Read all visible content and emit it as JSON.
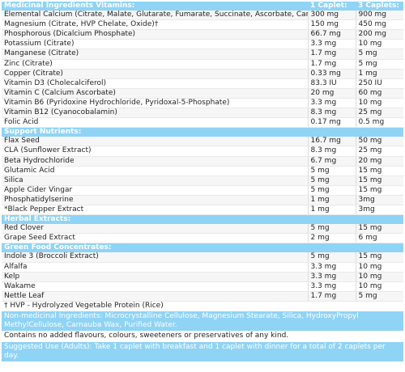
{
  "sections": [
    {
      "title": "Medicinal Ingredients Vitamins:",
      "col1": "1 Caplet:",
      "col2": "3 Caplets:",
      "rows": [
        [
          "Elemental Calcium (Citrate, Malate, Glutarate, Fumarate, Succinate, Ascorbate, Carbonate)",
          "300 mg",
          "900 mg"
        ],
        [
          "Magnesium (Citrate, HVP Chelate, Oxide)†",
          "150 mg",
          "450 mg"
        ],
        [
          "Phosphorous (Dicalcium Phosphate)",
          "66.7 mg",
          "200 mg"
        ],
        [
          "Potassium (Citrate)",
          "3.3 mg",
          "10 mg"
        ],
        [
          "Manganese (Citrate)",
          "1.7 mg",
          "5 mg"
        ],
        [
          "Zinc (Citrate)",
          "1.7 mg",
          "5 mg"
        ],
        [
          "Copper (Citrate)",
          "0.33 mg",
          "1 mg"
        ],
        [
          "Vitamin D3 (Cholecalciferol)",
          "83.3 IU",
          "250 IU"
        ],
        [
          "Vitamin C (Calcium Ascorbate)",
          "20 mg",
          "60 mg"
        ],
        [
          "Vitamin B6 (Pyridoxine Hydrochloride, Pyridoxal-5-Phosphate)",
          "3.3 mg",
          "10 mg"
        ],
        [
          "Vitamin B12 (Cyanocobalamin)",
          "8.3 mg",
          "25 mg"
        ],
        [
          "Folic Acid",
          "0.17 mg",
          "0.5 mg"
        ]
      ]
    },
    {
      "title": "Support Nutrients:",
      "col1": "",
      "col2": "",
      "rows": [
        [
          "Flax Seed",
          "16.7 mg",
          "50 mg"
        ],
        [
          "CLA (Sunflower Extract)",
          "8.3 mg",
          "25 mg"
        ],
        [
          "Beta Hydrochloride",
          "6.7 mg",
          "20 mg"
        ],
        [
          "Glutamic Acid",
          "5 mg",
          "15 mg"
        ],
        [
          "Silica",
          "5 mg",
          "15 mg"
        ],
        [
          "Apple Cider Vingar",
          "5 mg",
          "15 mg"
        ],
        [
          "Phosphatidylserine",
          "1 mg",
          "3mg"
        ],
        [
          "*Black Pepper Extract",
          "1 mg",
          "3mg"
        ]
      ]
    },
    {
      "title": "Herbal Extracts:",
      "col1": "",
      "col2": "",
      "rows": [
        [
          "Red Clover",
          "5 mg",
          "15 mg"
        ],
        [
          "Grape Seed Extract",
          "2 mg",
          "6 mg"
        ]
      ]
    },
    {
      "title": "Green Food Concentrates:",
      "col1": "",
      "col2": "",
      "rows": [
        [
          "Indole 3 (Broccoli Extract)",
          "5 mg",
          "15 mg"
        ],
        [
          "Alfalfa",
          "3.3 mg",
          "10 mg"
        ],
        [
          "Kelp",
          "3.3 mg",
          "10 mg"
        ],
        [
          "Wakame",
          "3.3 mg",
          "10 mg"
        ],
        [
          "Nettle Leaf",
          "1.7 mg",
          "5 mg"
        ]
      ]
    }
  ],
  "footnote": "† HVP - Hydrolyzed Vegetable Protein (Rice)",
  "non_medicinal": "Non-medicinal Ingredients: Microcrystalline Cellulose, Magnesium Stearate, Silica, HydroxyPropyl MethylCellulose, Carnauba Wax, Purified Water.",
  "no_added": "Contains no added flavours, colours, sweeteners or preservatives of any kind.",
  "suggested_use": "Suggested Use (Adults): Take 1 caplet with breakfast and 1 caplet with dinner for a total of 2 caplets per day."
}
